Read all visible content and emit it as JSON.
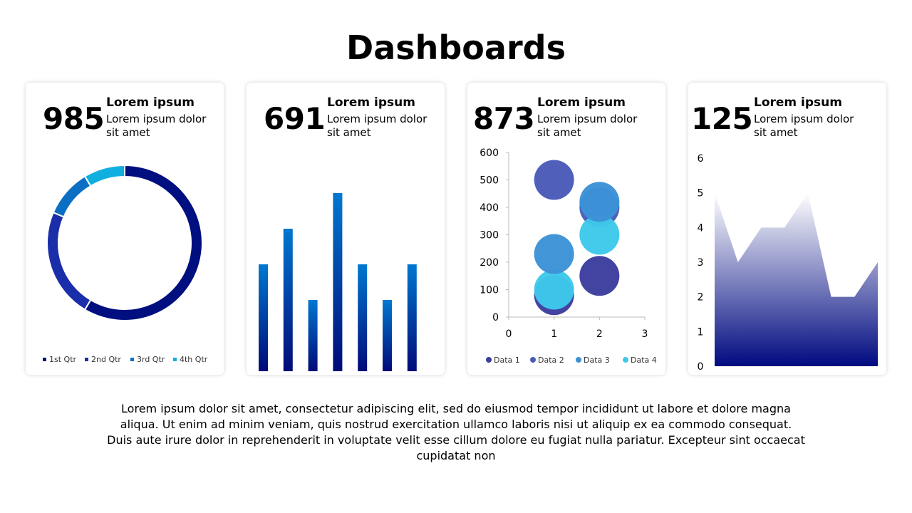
{
  "title": "Dashboards",
  "cards": [
    {
      "kpi": "985",
      "heading": "Lorem ipsum",
      "text": "Lorem ipsum dolor sit amet"
    },
    {
      "kpi": "691",
      "heading": "Lorem ipsum",
      "text": "Lorem ipsum dolor sit amet"
    },
    {
      "kpi": "873",
      "heading": "Lorem ipsum",
      "text": "Lorem ipsum dolor sit amet"
    },
    {
      "kpi": "125",
      "heading": "Lorem ipsum",
      "text": "Lorem ipsum dolor sit amet"
    }
  ],
  "paragraph": "Lorem ipsum dolor sit amet, consectetur adipiscing elit, sed do eiusmod tempor incididunt ut labore et dolore magna aliqua. Ut enim ad minim veniam, quis nostrud exercitation ullamco laboris nisi ut aliquip ex ea commodo consequat. Duis aute irure dolor in reprehenderit in voluptate velit esse cillum dolore eu fugiat nulla pariatur. Excepteur sint occaecat cupidatat non",
  "chart_data": [
    {
      "type": "pie",
      "variant": "donut",
      "categories": [
        "1st Qtr",
        "2nd Qtr",
        "3rd Qtr",
        "4th Qtr"
      ],
      "values": [
        8.2,
        3.2,
        1.4,
        1.2
      ],
      "colors": [
        "#000f80",
        "#1a2eaa",
        "#0a6fc4",
        "#0fb0e0"
      ],
      "legend": "bottom"
    },
    {
      "type": "bar",
      "categories": [
        "1",
        "2",
        "3",
        "4",
        "5",
        "6",
        "7"
      ],
      "values": [
        3,
        4,
        2,
        5,
        3,
        2,
        3
      ],
      "ylim": [
        0,
        5.5
      ],
      "colors": [
        "#0078d0",
        "#000a78"
      ]
    },
    {
      "type": "scatter",
      "variant": "bubble",
      "xlim": [
        0,
        3
      ],
      "ylim": [
        0,
        600
      ],
      "xticks": [
        0,
        1,
        2,
        3
      ],
      "yticks": [
        0,
        100,
        200,
        300,
        400,
        500,
        600
      ],
      "series": [
        {
          "name": "Data 1",
          "color": "#3d3d9e",
          "points": [
            [
              1,
              80
            ],
            [
              2,
              150
            ]
          ]
        },
        {
          "name": "Data 2",
          "color": "#4a5ab8",
          "points": [
            [
              1,
              500
            ],
            [
              2,
              400
            ]
          ]
        },
        {
          "name": "Data 3",
          "color": "#3c92d6",
          "points": [
            [
              1,
              230
            ],
            [
              2,
              420
            ]
          ]
        },
        {
          "name": "Data 4",
          "color": "#3ec8ea",
          "points": [
            [
              1,
              100
            ],
            [
              2,
              300
            ]
          ]
        }
      ],
      "legend": "bottom"
    },
    {
      "type": "area",
      "x": [
        1,
        2,
        3,
        4,
        5,
        6,
        7,
        8
      ],
      "values": [
        5,
        3,
        4,
        4,
        5,
        2,
        2,
        3
      ],
      "ylim": [
        0,
        6
      ],
      "yticks": [
        0,
        1,
        2,
        3,
        4,
        5,
        6
      ],
      "colors": [
        "#000a80",
        "#ffffff"
      ]
    }
  ]
}
